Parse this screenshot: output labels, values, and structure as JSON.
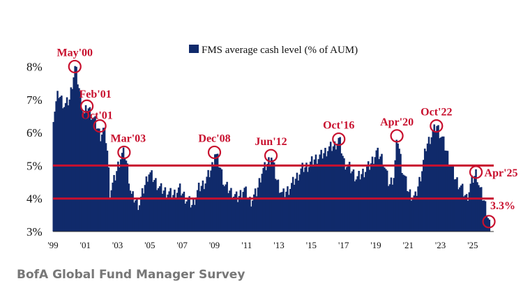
{
  "chart_data": {
    "type": "bar",
    "legend": "FMS average cash level (% of AUM)",
    "legend_position": "top-center",
    "y_ticks": [
      "8%",
      "7%",
      "6%",
      "5%",
      "4%",
      "3%"
    ],
    "ylim": [
      3,
      8.2
    ],
    "x_ticks": [
      "'99",
      "'01",
      "'03",
      "'05",
      "'07",
      "'09",
      "'11",
      "'13",
      "'15",
      "'17",
      "'19",
      "'21",
      "'23",
      "'25"
    ],
    "xlim": [
      1999.0,
      2026.3
    ],
    "reference_lines": [
      5.0,
      4.0
    ],
    "colors": {
      "bars": "#102a6b",
      "accent": "#c8102e"
    },
    "series": [
      {
        "points": [
          [
            1999.0,
            6.5
          ],
          [
            1999.3,
            7.2
          ],
          [
            1999.7,
            6.8
          ],
          [
            2000.0,
            7.0
          ],
          [
            2000.2,
            7.6
          ],
          [
            2000.35,
            8.0
          ],
          [
            2000.6,
            7.3
          ],
          [
            2000.9,
            6.5
          ],
          [
            2001.1,
            6.8
          ],
          [
            2001.4,
            6.5
          ],
          [
            2001.7,
            6.2
          ],
          [
            2001.9,
            5.9
          ],
          [
            2002.1,
            6.1
          ],
          [
            2002.3,
            5.7
          ],
          [
            2002.5,
            4.2
          ],
          [
            2002.8,
            4.6
          ],
          [
            2003.0,
            5.0
          ],
          [
            2003.2,
            5.3
          ],
          [
            2003.4,
            5.4
          ],
          [
            2003.6,
            4.9
          ],
          [
            2003.8,
            4.1
          ],
          [
            2004.0,
            4.0
          ],
          [
            2004.3,
            3.8
          ],
          [
            2004.6,
            4.3
          ],
          [
            2004.9,
            4.8
          ],
          [
            2005.2,
            4.6
          ],
          [
            2005.6,
            4.3
          ],
          [
            2006.0,
            4.2
          ],
          [
            2006.4,
            4.1
          ],
          [
            2006.8,
            4.3
          ],
          [
            2007.2,
            4.0
          ],
          [
            2007.6,
            3.8
          ],
          [
            2008.0,
            4.3
          ],
          [
            2008.4,
            4.5
          ],
          [
            2008.8,
            4.9
          ],
          [
            2009.0,
            5.4
          ],
          [
            2009.3,
            5.0
          ],
          [
            2009.6,
            4.4
          ],
          [
            2010.0,
            4.2
          ],
          [
            2010.4,
            4.0
          ],
          [
            2010.8,
            4.3
          ],
          [
            2011.2,
            3.9
          ],
          [
            2011.6,
            4.2
          ],
          [
            2011.9,
            4.8
          ],
          [
            2012.2,
            5.0
          ],
          [
            2012.5,
            5.3
          ],
          [
            2012.8,
            4.6
          ],
          [
            2013.2,
            4.1
          ],
          [
            2013.6,
            4.3
          ],
          [
            2014.0,
            4.6
          ],
          [
            2014.4,
            4.9
          ],
          [
            2014.8,
            5.0
          ],
          [
            2015.2,
            5.2
          ],
          [
            2015.6,
            5.3
          ],
          [
            2016.0,
            5.5
          ],
          [
            2016.4,
            5.6
          ],
          [
            2016.7,
            5.8
          ],
          [
            2017.0,
            5.1
          ],
          [
            2017.4,
            4.9
          ],
          [
            2017.8,
            4.6
          ],
          [
            2018.2,
            4.8
          ],
          [
            2018.6,
            5.0
          ],
          [
            2019.0,
            5.4
          ],
          [
            2019.4,
            5.2
          ],
          [
            2019.8,
            4.4
          ],
          [
            2020.1,
            4.7
          ],
          [
            2020.3,
            5.9
          ],
          [
            2020.6,
            4.9
          ],
          [
            2021.0,
            4.2
          ],
          [
            2021.4,
            4.0
          ],
          [
            2021.8,
            4.8
          ],
          [
            2022.1,
            5.6
          ],
          [
            2022.5,
            6.0
          ],
          [
            2022.75,
            6.2
          ],
          [
            2023.1,
            5.8
          ],
          [
            2023.5,
            5.2
          ],
          [
            2023.9,
            4.6
          ],
          [
            2024.3,
            4.3
          ],
          [
            2024.6,
            4.0
          ],
          [
            2024.9,
            4.5
          ],
          [
            2025.2,
            4.8
          ],
          [
            2025.4,
            4.3
          ],
          [
            2025.7,
            3.9
          ],
          [
            2026.0,
            3.3
          ]
        ]
      }
    ],
    "annotations": [
      {
        "label": "May'00",
        "x": 2000.35,
        "y": 8.0
      },
      {
        "label": "Feb'01",
        "x": 2001.1,
        "y": 6.8
      },
      {
        "label": "Oct'01",
        "x": 2001.9,
        "y": 6.2
      },
      {
        "label": "Mar'03",
        "x": 2003.4,
        "y": 5.4
      },
      {
        "label": "Dec'08",
        "x": 2009.0,
        "y": 5.4
      },
      {
        "label": "Jun'12",
        "x": 2012.5,
        "y": 5.3
      },
      {
        "label": "Oct'16",
        "x": 2016.7,
        "y": 5.8
      },
      {
        "label": "Apr'20",
        "x": 2020.3,
        "y": 5.9
      },
      {
        "label": "Oct'22",
        "x": 2022.75,
        "y": 6.2
      },
      {
        "label": "Apr'25",
        "x": 2025.2,
        "y": 4.8
      },
      {
        "label": "3.3%",
        "x": 2026.0,
        "y": 3.3
      }
    ]
  },
  "source": "BofA Global Fund Manager Survey"
}
